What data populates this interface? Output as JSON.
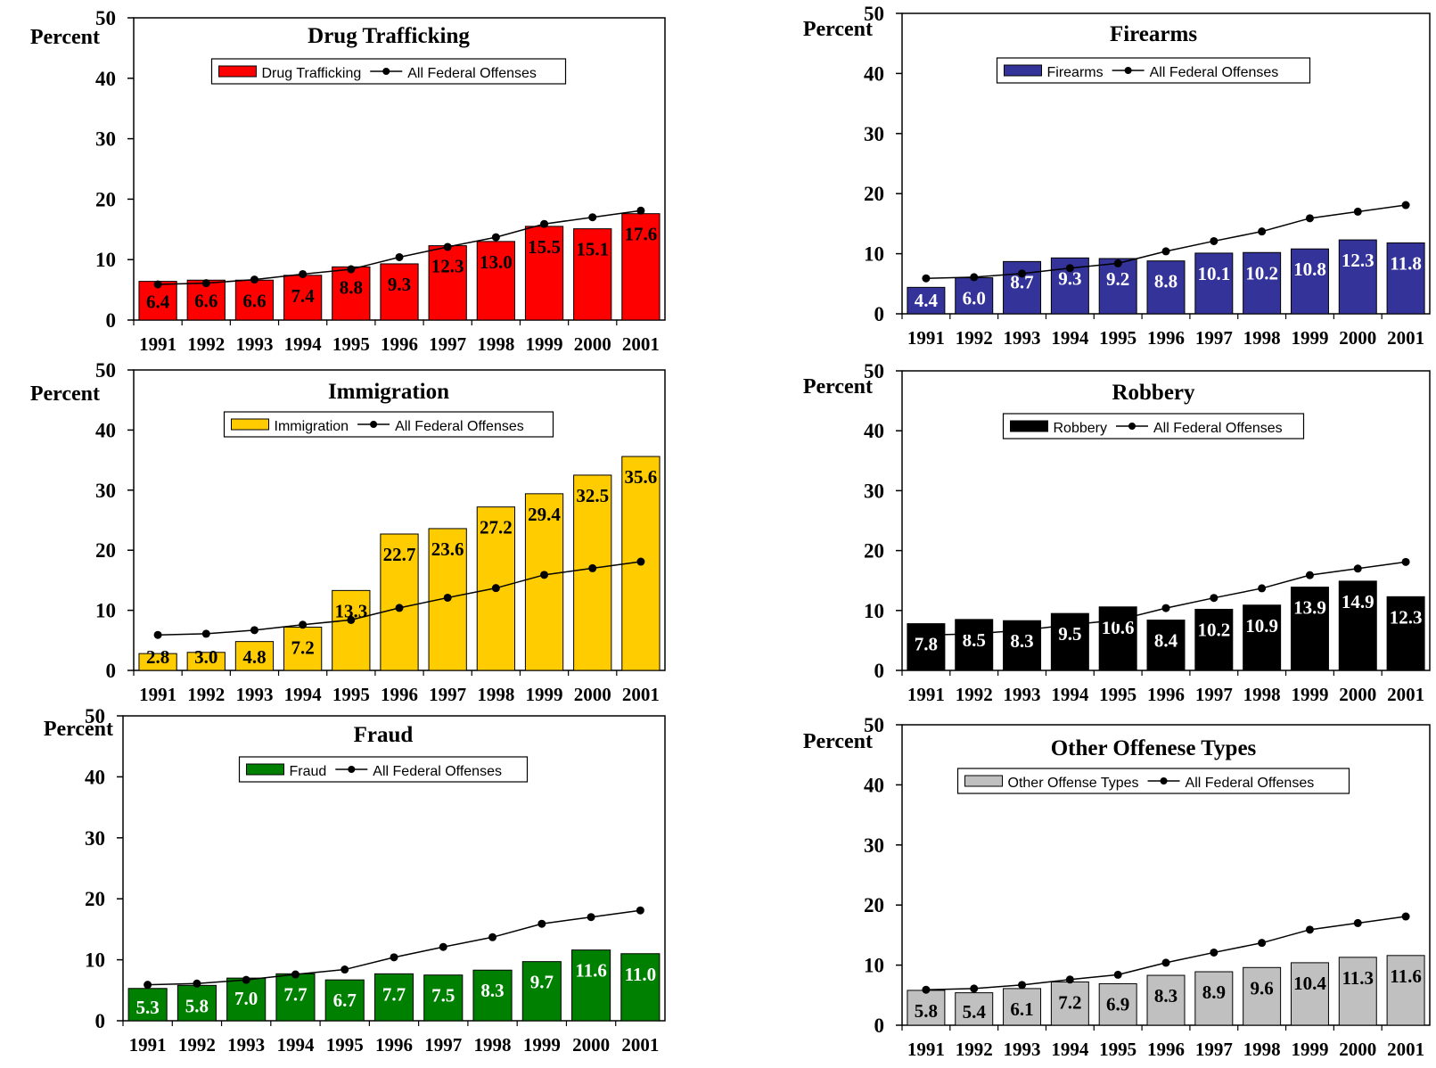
{
  "years": [
    "1991",
    "1992",
    "1993",
    "1994",
    "1995",
    "1996",
    "1997",
    "1998",
    "1999",
    "2000",
    "2001"
  ],
  "y_axis": {
    "label": "Percent",
    "ticks": [
      0,
      10,
      20,
      30,
      40,
      50
    ],
    "ylim": [
      0,
      50
    ]
  },
  "line_series_name": "All Federal Offenses",
  "chart_data": [
    {
      "type": "bar",
      "title": "Drug Trafficking",
      "bar_series_name": "Drug Trafficking",
      "bar_color": "#ff0000",
      "label_color": "#000000",
      "categories": [
        "1991",
        "1992",
        "1993",
        "1994",
        "1995",
        "1996",
        "1997",
        "1998",
        "1999",
        "2000",
        "2001"
      ],
      "values": [
        6.4,
        6.6,
        6.6,
        7.4,
        8.8,
        9.3,
        12.3,
        13.0,
        15.5,
        15.1,
        17.6
      ],
      "labels": [
        "6.4",
        "6.6",
        "6.6",
        "7.4",
        "8.8",
        "9.3",
        "12.3",
        "13.0",
        "15.5",
        "15.1",
        "17.6"
      ],
      "line_values": [
        5.9,
        6.1,
        6.7,
        7.6,
        8.4,
        10.4,
        12.1,
        13.7,
        15.9,
        17.0,
        18.1
      ],
      "ylabel": "Percent",
      "ylim": [
        0,
        50
      ]
    },
    {
      "type": "bar",
      "title": "Firearms",
      "bar_series_name": "Firearms",
      "bar_color": "#333399",
      "label_color": "#ffffff",
      "categories": [
        "1991",
        "1992",
        "1993",
        "1994",
        "1995",
        "1996",
        "1997",
        "1998",
        "1999",
        "2000",
        "2001"
      ],
      "values": [
        4.4,
        6.0,
        8.7,
        9.3,
        9.2,
        8.8,
        10.1,
        10.2,
        10.8,
        12.3,
        11.8
      ],
      "labels": [
        "4.4",
        "6.0",
        "8.7",
        "9.3",
        "9.2",
        "8.8",
        "10.1",
        "10.2",
        "10.8",
        "12.3",
        "11.8"
      ],
      "line_values": [
        5.9,
        6.1,
        6.7,
        7.6,
        8.4,
        10.4,
        12.1,
        13.7,
        15.9,
        17.0,
        18.1
      ],
      "ylabel": "Percent",
      "ylim": [
        0,
        50
      ]
    },
    {
      "type": "bar",
      "title": "Immigration",
      "bar_series_name": "Immigration",
      "bar_color": "#ffcc00",
      "label_color": "#000000",
      "categories": [
        "1991",
        "1992",
        "1993",
        "1994",
        "1995",
        "1996",
        "1997",
        "1998",
        "1999",
        "2000",
        "2001"
      ],
      "values": [
        2.8,
        3.0,
        4.8,
        7.2,
        13.3,
        22.7,
        23.6,
        27.2,
        29.4,
        32.5,
        35.6
      ],
      "labels": [
        "2.8",
        "3.0",
        "4.8",
        "7.2",
        "13.3",
        "22.7",
        "23.6",
        "27.2",
        "29.4",
        "32.5",
        "35.6"
      ],
      "line_values": [
        5.9,
        6.1,
        6.7,
        7.6,
        8.4,
        10.4,
        12.1,
        13.7,
        15.9,
        17.0,
        18.1
      ],
      "ylabel": "Percent",
      "ylim": [
        0,
        50
      ]
    },
    {
      "type": "bar",
      "title": "Robbery",
      "bar_series_name": "Robbery",
      "bar_color": "#000000",
      "label_color": "#ffffff",
      "categories": [
        "1991",
        "1992",
        "1993",
        "1994",
        "1995",
        "1996",
        "1997",
        "1998",
        "1999",
        "2000",
        "2001"
      ],
      "values": [
        7.8,
        8.5,
        8.3,
        9.5,
        10.6,
        8.4,
        10.2,
        10.9,
        13.9,
        14.9,
        12.3
      ],
      "labels": [
        "7.8",
        "8.5",
        "8.3",
        "9.5",
        "10.6",
        "8.4",
        "10.2",
        "10.9",
        "13.9",
        "14.9",
        "12.3"
      ],
      "line_values": [
        5.9,
        6.1,
        6.7,
        7.6,
        8.4,
        10.4,
        12.1,
        13.7,
        15.9,
        17.0,
        18.1
      ],
      "ylabel": "Percent",
      "ylim": [
        0,
        50
      ]
    },
    {
      "type": "bar",
      "title": "Fraud",
      "bar_series_name": "Fraud",
      "bar_color": "#008000",
      "label_color": "#ffffff",
      "categories": [
        "1991",
        "1992",
        "1993",
        "1994",
        "1995",
        "1996",
        "1997",
        "1998",
        "1999",
        "2000",
        "2001"
      ],
      "values": [
        5.3,
        5.8,
        7.0,
        7.7,
        6.7,
        7.7,
        7.5,
        8.3,
        9.7,
        11.6,
        11.0
      ],
      "labels": [
        "5.3",
        "5.8",
        "7.0",
        "7.7",
        "6.7",
        "7.7",
        "7.5",
        "8.3",
        "9.7",
        "11.6",
        "11.0"
      ],
      "line_values": [
        5.9,
        6.1,
        6.7,
        7.6,
        8.4,
        10.4,
        12.1,
        13.7,
        15.9,
        17.0,
        18.1
      ],
      "ylabel": "Percent",
      "ylim": [
        0,
        50
      ]
    },
    {
      "type": "bar",
      "title": "Other Offenese Types",
      "bar_series_name": "Other Offense Types",
      "bar_color": "#c0c0c0",
      "label_color": "#000000",
      "categories": [
        "1991",
        "1992",
        "1993",
        "1994",
        "1995",
        "1996",
        "1997",
        "1998",
        "1999",
        "2000",
        "2001"
      ],
      "values": [
        5.8,
        5.4,
        6.1,
        7.2,
        6.9,
        8.3,
        8.9,
        9.6,
        10.4,
        11.3,
        11.6
      ],
      "labels": [
        "5.8",
        "5.4",
        "6.1",
        "7.2",
        "6.9",
        "8.3",
        "8.9",
        "9.6",
        "10.4",
        "11.3",
        "11.6"
      ],
      "line_values": [
        5.9,
        6.1,
        6.7,
        7.6,
        8.4,
        10.4,
        12.1,
        13.7,
        15.9,
        17.0,
        18.1
      ],
      "ylabel": "Percent",
      "ylim": [
        0,
        50
      ]
    }
  ]
}
